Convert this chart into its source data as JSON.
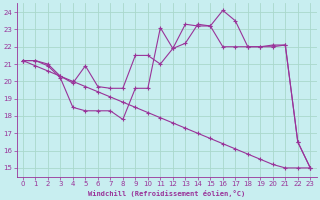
{
  "xlabel": "Windchill (Refroidissement éolien,°C)",
  "xlim": [
    -0.5,
    23.5
  ],
  "ylim": [
    14.5,
    24.5
  ],
  "yticks": [
    15,
    16,
    17,
    18,
    19,
    20,
    21,
    22,
    23,
    24
  ],
  "xticks": [
    0,
    1,
    2,
    3,
    4,
    5,
    6,
    7,
    8,
    9,
    10,
    11,
    12,
    13,
    14,
    15,
    16,
    17,
    18,
    19,
    20,
    21,
    22,
    23
  ],
  "bg_color": "#c8eef0",
  "grid_color": "#aad8cc",
  "line_color": "#993399",
  "line1_x": [
    0,
    1,
    2,
    3,
    4,
    5,
    6,
    7,
    8,
    9,
    10,
    11,
    12,
    13,
    14,
    15,
    16,
    17,
    18,
    19,
    20,
    21,
    22,
    23
  ],
  "line1_y": [
    21.2,
    21.2,
    21.0,
    20.3,
    19.9,
    20.9,
    19.7,
    19.6,
    19.6,
    21.5,
    21.5,
    21.0,
    21.9,
    23.3,
    23.2,
    23.2,
    22.0,
    22.0,
    22.0,
    22.0,
    22.1,
    22.1,
    16.5,
    15.0
  ],
  "line2_x": [
    0,
    1,
    2,
    3,
    4,
    5,
    6,
    7,
    8,
    9,
    10,
    11,
    12,
    13,
    14,
    15,
    16,
    17,
    18,
    19,
    20,
    21,
    22,
    23
  ],
  "line2_y": [
    21.2,
    21.2,
    20.9,
    20.2,
    18.5,
    18.3,
    18.3,
    18.3,
    17.8,
    19.6,
    19.6,
    23.1,
    21.9,
    22.2,
    23.3,
    23.2,
    24.1,
    23.5,
    22.0,
    22.0,
    22.0,
    22.1,
    16.5,
    15.0
  ],
  "line3_x": [
    0,
    1,
    2,
    3,
    4,
    5,
    6,
    7,
    8,
    9,
    10,
    11,
    12,
    13,
    14,
    15,
    16,
    17,
    18,
    19,
    20,
    21,
    22,
    23
  ],
  "line3_y": [
    21.2,
    20.9,
    20.6,
    20.3,
    20.0,
    19.7,
    19.4,
    19.1,
    18.8,
    18.5,
    18.2,
    17.9,
    17.6,
    17.3,
    17.0,
    16.7,
    16.4,
    16.1,
    15.8,
    15.5,
    15.2,
    15.0,
    15.0,
    15.0
  ]
}
